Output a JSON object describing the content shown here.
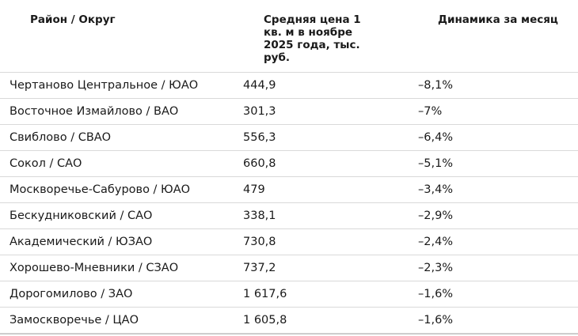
{
  "table": {
    "headers": {
      "district": "Район / Округ",
      "price": "Средняя цена 1 кв. м в ноябре 2025 года, тыс. руб.",
      "change": "Динамика за месяц"
    },
    "rows": [
      {
        "district": "Чертаново Центральное / ЮАО",
        "price": "444,9",
        "change": "–8,1%"
      },
      {
        "district": "Восточное Измайлово / ВАО",
        "price": "301,3",
        "change": "–7%"
      },
      {
        "district": "Свиблово / СВАО",
        "price": "556,3",
        "change": "–6,4%"
      },
      {
        "district": "Сокол / САО",
        "price": "660,8",
        "change": "–5,1%"
      },
      {
        "district": "Москворечье-Сабурово / ЮАО",
        "price": "479",
        "change": "–3,4%"
      },
      {
        "district": "Бескудниковский / САО",
        "price": "338,1",
        "change": "–2,9%"
      },
      {
        "district": "Академический / ЮЗАО",
        "price": "730,8",
        "change": "–2,4%"
      },
      {
        "district": "Хорошево-Мневники / СЗАО",
        "price": "737,2",
        "change": "–2,3%"
      },
      {
        "district": "Дорогомилово / ЗАО",
        "price": "1 617,6",
        "change": "–1,6%"
      },
      {
        "district": "Замоскворечье / ЦАО",
        "price": "1 605,8",
        "change": "–1,6%"
      }
    ]
  }
}
